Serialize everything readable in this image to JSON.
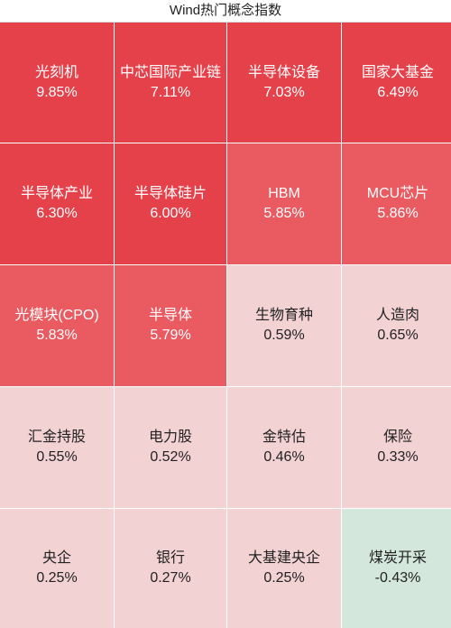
{
  "header": {
    "title": "Wind热门概念指数"
  },
  "tiles": [
    {
      "name": "光刻机",
      "change": "9.85%",
      "level": "strong"
    },
    {
      "name": "中芯国际产业链",
      "change": "7.11%",
      "level": "strong"
    },
    {
      "name": "半导体设备",
      "change": "7.03%",
      "level": "strong"
    },
    {
      "name": "国家大基金",
      "change": "6.49%",
      "level": "strong"
    },
    {
      "name": "半导体产业",
      "change": "6.30%",
      "level": "strong"
    },
    {
      "name": "半导体硅片",
      "change": "6.00%",
      "level": "strong"
    },
    {
      "name": "HBM",
      "change": "5.85%",
      "level": "mid"
    },
    {
      "name": "MCU芯片",
      "change": "5.86%",
      "level": "mid"
    },
    {
      "name": "光模块(CPO)",
      "change": "5.83%",
      "level": "mid"
    },
    {
      "name": "半导体",
      "change": "5.79%",
      "level": "mid"
    },
    {
      "name": "生物育种",
      "change": "0.59%",
      "level": "pale"
    },
    {
      "name": "人造肉",
      "change": "0.65%",
      "level": "pale"
    },
    {
      "name": "汇金持股",
      "change": "0.55%",
      "level": "pale"
    },
    {
      "name": "电力股",
      "change": "0.52%",
      "level": "pale"
    },
    {
      "name": "金特估",
      "change": "0.46%",
      "level": "pale"
    },
    {
      "name": "保险",
      "change": "0.33%",
      "level": "pale"
    },
    {
      "name": "央企",
      "change": "0.25%",
      "level": "pale"
    },
    {
      "name": "银行",
      "change": "0.27%",
      "level": "pale"
    },
    {
      "name": "大基建央企",
      "change": "0.25%",
      "level": "pale"
    },
    {
      "name": "煤炭开采",
      "change": "-0.43%",
      "level": "green"
    }
  ],
  "colors": {
    "strong": "#e5414a",
    "mid": "#ea5a61",
    "pale": "#f3d2d3",
    "green": "#d3e7dd"
  }
}
